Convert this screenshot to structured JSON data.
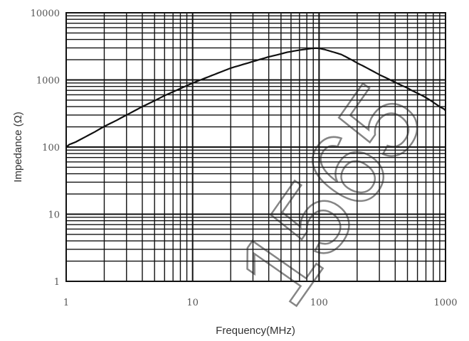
{
  "chart_data": {
    "type": "line",
    "title": "",
    "xlabel": "Frequency(MHz)",
    "ylabel": "Impedance (Ω)",
    "xscale": "log",
    "yscale": "log",
    "xlim": [
      1,
      1000
    ],
    "ylim": [
      1,
      10000
    ],
    "grid": true,
    "legend": "none",
    "x_ticks": [
      {
        "value": 1,
        "label": "1"
      },
      {
        "value": 10,
        "label": "10"
      },
      {
        "value": 100,
        "label": "100"
      },
      {
        "value": 1000,
        "label": "1000"
      }
    ],
    "y_ticks": [
      {
        "value": 1,
        "label": "1"
      },
      {
        "value": 10,
        "label": "10"
      },
      {
        "value": 100,
        "label": "100"
      },
      {
        "value": 1000,
        "label": "1000"
      },
      {
        "value": 10000,
        "label": "10000"
      }
    ],
    "series": [
      {
        "x": [
          1,
          2,
          5,
          10,
          20,
          50,
          80,
          100,
          150,
          200,
          300,
          500,
          700,
          1000
        ],
        "y": [
          100,
          200,
          500,
          900,
          1500,
          2500,
          2900,
          3000,
          2400,
          1800,
          1200,
          750,
          550,
          350
        ],
        "color": "#111111"
      }
    ],
    "watermark": {
      "text": "1565",
      "color": "#222222"
    }
  }
}
